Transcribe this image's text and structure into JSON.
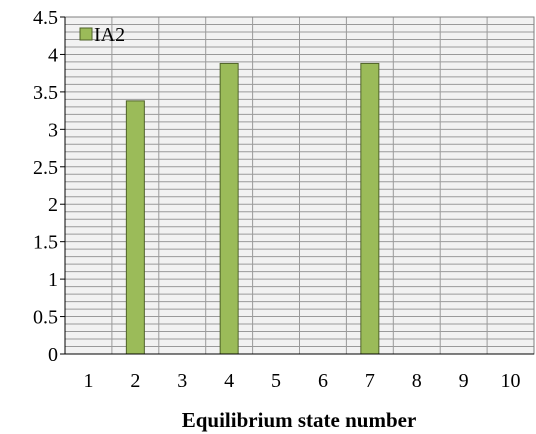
{
  "chart_data": {
    "type": "bar",
    "title": "",
    "xlabel": "Equilibrium state number",
    "ylabel": "",
    "categories": [
      "1",
      "2",
      "3",
      "4",
      "5",
      "6",
      "7",
      "8",
      "9",
      "10"
    ],
    "series": [
      {
        "name": "IA2",
        "values": [
          0,
          3.38,
          0,
          3.88,
          0,
          0,
          3.88,
          0,
          0,
          0
        ],
        "color": "#9bbb59",
        "border_color": "#4f6228"
      }
    ],
    "ylim": [
      0,
      4.5
    ],
    "y_ticks": [
      "0",
      "0.5",
      "1",
      "1.5",
      "2",
      "2.5",
      "3",
      "3.5",
      "4",
      "4.5"
    ],
    "grid": true,
    "legend_position": "top-left"
  }
}
